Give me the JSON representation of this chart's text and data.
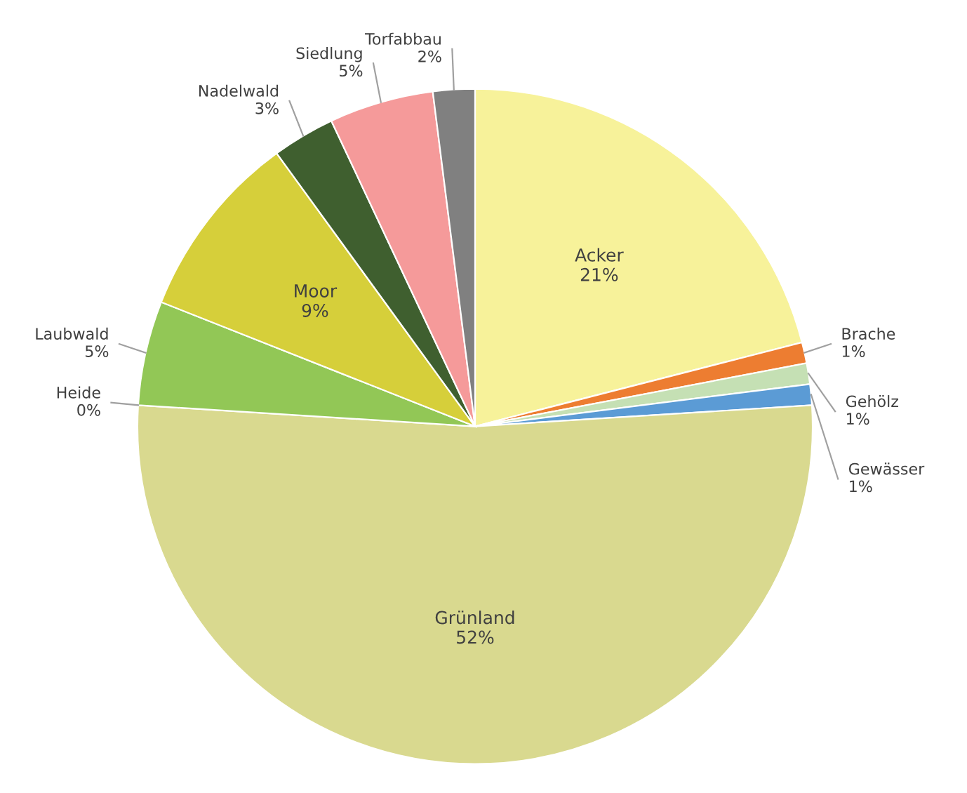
{
  "chart_data": {
    "type": "pie",
    "categories": [
      "Acker",
      "Brache",
      "Gehölz",
      "Gewässer",
      "Grünland",
      "Heide",
      "Laubwald",
      "Moor",
      "Nadelwald",
      "Siedlung",
      "Torfabbau"
    ],
    "values": [
      21,
      1,
      1,
      1,
      52,
      0,
      5,
      9,
      3,
      5,
      2
    ],
    "value_labels": [
      "21%",
      "1%",
      "1%",
      "1%",
      "52%",
      "0%",
      "5%",
      "9%",
      "3%",
      "5%",
      "2%"
    ],
    "colors": [
      "#f7f29a",
      "#ed7d31",
      "#c5e0b4",
      "#5b9bd5",
      "#d9d98f",
      "#f4b183",
      "#92c756",
      "#d6cf3a",
      "#3f5f2f",
      "#f59a9a",
      "#808080"
    ],
    "legend": false
  }
}
